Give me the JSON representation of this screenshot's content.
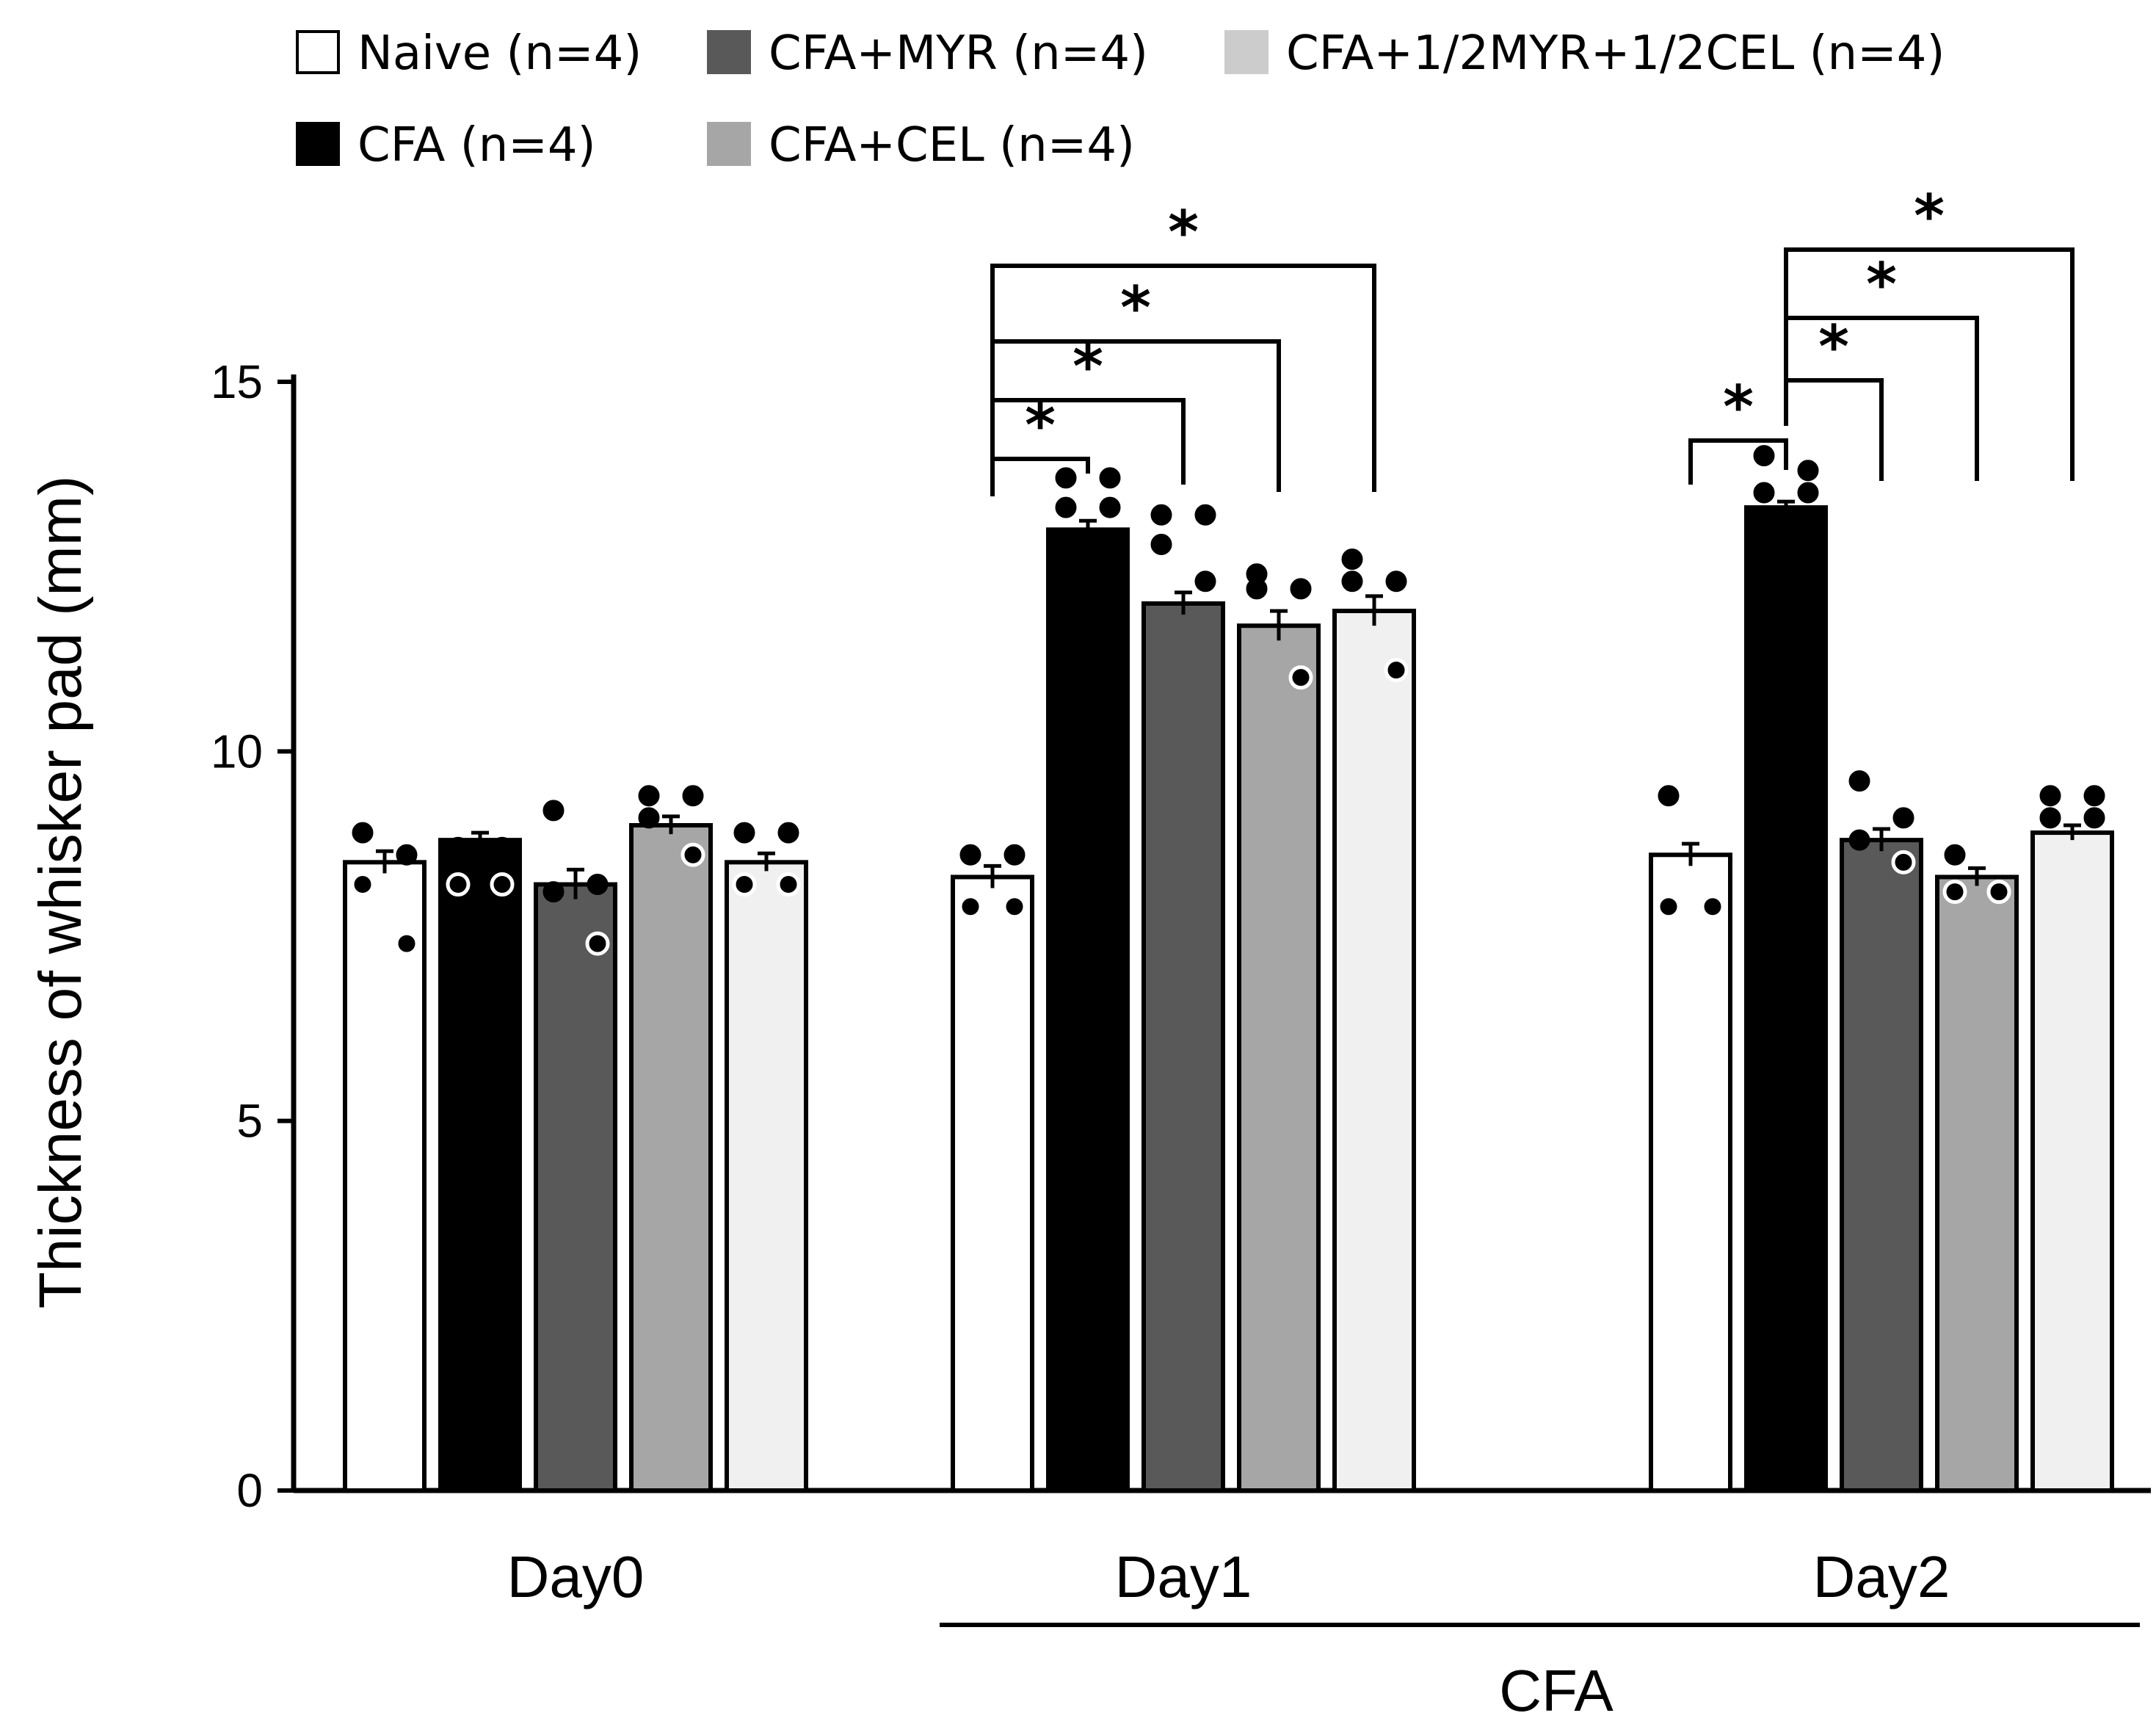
{
  "chart_data": {
    "type": "bar",
    "title": "",
    "ylabel": "Thickness of whisker pad (mm)",
    "xlabel": "",
    "ylim": [
      0,
      15
    ],
    "yticks": [
      "0",
      "5",
      "10",
      "15"
    ],
    "categories": [
      "Day0",
      "Day1",
      "Day2"
    ],
    "span_label": "CFA",
    "series": [
      {
        "name": "Naive (n=4)",
        "color": "#ffffff",
        "values": [
          8.5,
          8.3,
          8.6
        ],
        "sem": [
          0.15,
          0.15,
          0.15
        ],
        "points": [
          [
            8.9,
            8.6,
            8.2,
            7.4
          ],
          [
            8.6,
            8.6,
            7.9,
            7.9
          ],
          [
            9.4,
            7.9,
            7.9,
            7.9
          ]
        ]
      },
      {
        "name": "CFA (n=4)",
        "color": "#000000",
        "values": [
          8.8,
          13.0,
          13.3
        ],
        "sem": [
          0.1,
          0.12,
          0.08
        ],
        "points": [
          [
            8.7,
            8.7,
            8.2,
            8.2
          ],
          [
            13.7,
            13.7,
            13.3,
            13.3
          ],
          [
            14.0,
            13.8,
            13.5,
            13.5
          ]
        ]
      },
      {
        "name": "CFA+MYR (n=4)",
        "color": "#595959",
        "values": [
          8.2,
          12.0,
          8.8
        ],
        "sem": [
          0.2,
          0.15,
          0.15
        ],
        "points": [
          [
            9.2,
            8.2,
            8.1,
            7.4
          ],
          [
            13.2,
            13.2,
            12.8,
            12.3
          ],
          [
            9.6,
            9.1,
            8.8,
            8.5
          ]
        ]
      },
      {
        "name": "CFA+CEL (n=4)",
        "color": "#a6a6a6",
        "values": [
          9.0,
          11.7,
          8.3
        ],
        "sem": [
          0.12,
          0.2,
          0.12
        ],
        "points": [
          [
            9.4,
            9.4,
            9.1,
            8.6
          ],
          [
            12.4,
            12.2,
            12.2,
            11.0
          ],
          [
            8.6,
            8.1,
            8.1,
            8.1
          ]
        ]
      },
      {
        "name": "CFA+1/2MYR+1/2CEL (n=4)",
        "color": "#f0f0f0",
        "values": [
          8.5,
          11.9,
          8.9
        ],
        "sem": [
          0.12,
          0.2,
          0.1
        ],
        "points": [
          [
            8.9,
            8.9,
            8.2,
            8.2
          ],
          [
            12.6,
            12.3,
            12.3,
            11.1
          ],
          [
            9.4,
            9.4,
            9.1,
            9.1
          ]
        ]
      }
    ],
    "significance": [
      {
        "group": 1,
        "from": 0,
        "to": 1,
        "label": "*"
      },
      {
        "group": 1,
        "from": 0,
        "to": 2,
        "label": "*"
      },
      {
        "group": 1,
        "from": 0,
        "to": 3,
        "label": "*"
      },
      {
        "group": 1,
        "from": 0,
        "to": 4,
        "label": "*"
      },
      {
        "group": 2,
        "from": 0,
        "to": 1,
        "label": "*"
      },
      {
        "group": 2,
        "from": 1,
        "to": 2,
        "label": "*"
      },
      {
        "group": 2,
        "from": 1,
        "to": 3,
        "label": "*"
      },
      {
        "group": 2,
        "from": 1,
        "to": 4,
        "label": "*"
      }
    ]
  }
}
